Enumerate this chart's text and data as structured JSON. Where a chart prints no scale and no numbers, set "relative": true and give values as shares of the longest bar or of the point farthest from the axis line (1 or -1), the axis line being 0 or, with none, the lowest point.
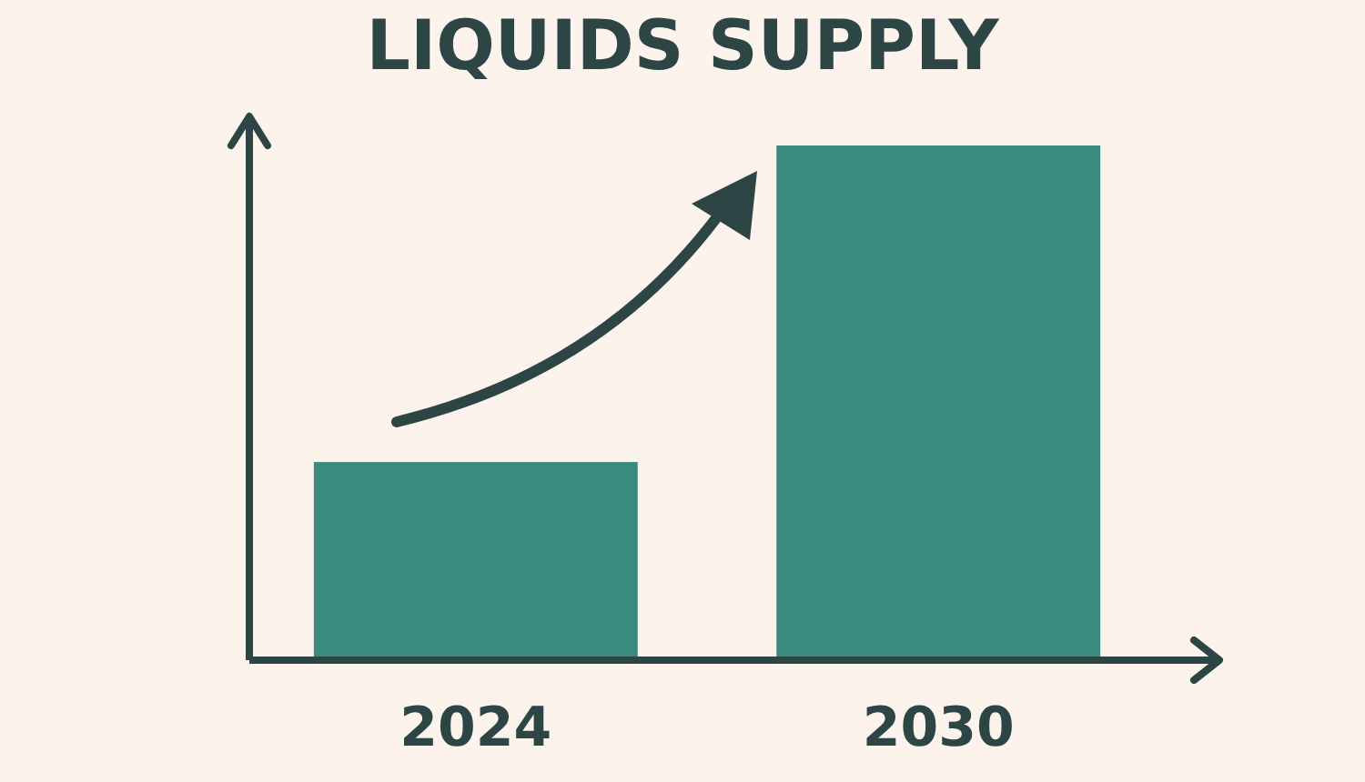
{
  "chart_data": {
    "type": "bar",
    "title": "LIQUIDS SUPPLY",
    "categories": [
      "2024",
      "2030"
    ],
    "values": [
      0.385,
      1
    ],
    "color": "#3a8a7e",
    "relative": true
  }
}
